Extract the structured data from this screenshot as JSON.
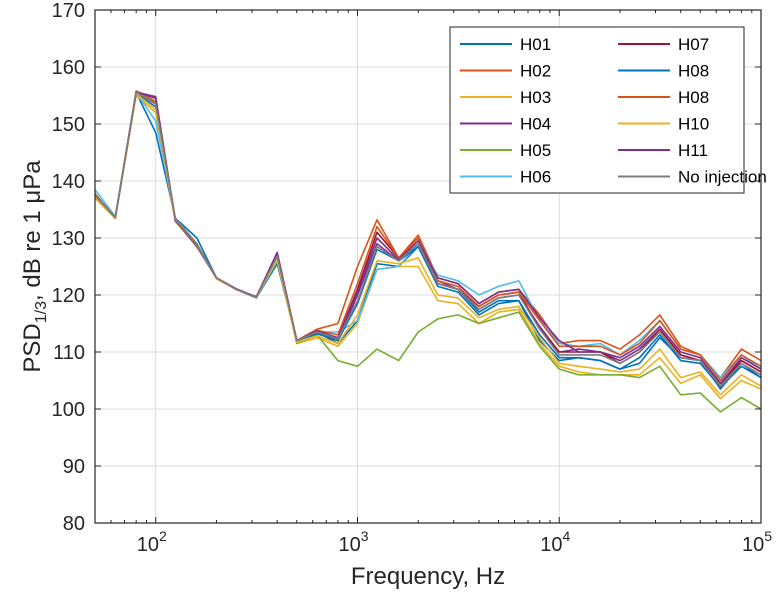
{
  "chart_data": {
    "type": "line",
    "xscale": "log",
    "xlim": [
      50,
      100000
    ],
    "ylim": [
      80,
      170
    ],
    "grid": true,
    "legend_position": "top-right",
    "xlabel": "Frequency, Hz",
    "ylabel": "PSD",
    "ylabel_subscript": "1/3",
    "ylabel_tail": ", dB re 1 μPa",
    "x_ticks": [
      {
        "value": 100,
        "base": "10",
        "exp": "2"
      },
      {
        "value": 1000,
        "base": "10",
        "exp": "3"
      },
      {
        "value": 10000,
        "base": "10",
        "exp": "4"
      },
      {
        "value": 100000,
        "base": "10",
        "exp": "5"
      }
    ],
    "y_ticks": [
      "80",
      "90",
      "100",
      "110",
      "120",
      "130",
      "140",
      "150",
      "160",
      "170"
    ],
    "x": [
      50,
      63,
      80,
      100,
      125,
      160,
      200,
      250,
      315,
      400,
      500,
      630,
      800,
      1000,
      1250,
      1600,
      2000,
      2500,
      3150,
      4000,
      5000,
      6300,
      8000,
      10000,
      12500,
      16000,
      20000,
      25000,
      31500,
      40000,
      50000,
      63000,
      80000,
      100000
    ],
    "series": [
      {
        "name": "H01",
        "color": "#0072BD",
        "values": [
          137.5,
          133.6,
          155.5,
          148.5,
          133.5,
          130.0,
          123.0,
          121.0,
          119.5,
          125.5,
          112.0,
          113.5,
          111.5,
          115.5,
          125.5,
          125.0,
          128.5,
          122.0,
          121.0,
          117.0,
          119.0,
          119.0,
          112.0,
          108.5,
          109.0,
          108.5,
          107.0,
          108.0,
          112.5,
          109.0,
          108.5,
          103.5,
          108.0,
          105.5
        ]
      },
      {
        "name": "H02",
        "color": "#D95319",
        "values": [
          137.8,
          133.5,
          155.8,
          154.0,
          133.0,
          128.5,
          123.0,
          121.0,
          119.7,
          127.0,
          112.0,
          114.0,
          115.0,
          125.0,
          133.2,
          126.5,
          130.5,
          123.0,
          122.0,
          118.5,
          120.5,
          121.0,
          116.5,
          111.5,
          112.0,
          112.0,
          110.5,
          113.0,
          116.5,
          111.0,
          109.5,
          105.5,
          110.5,
          108.5
        ]
      },
      {
        "name": "H03",
        "color": "#EDB120",
        "values": [
          137.0,
          133.4,
          155.0,
          152.0,
          132.8,
          128.8,
          122.8,
          121.0,
          119.6,
          126.0,
          111.5,
          112.5,
          111.0,
          115.0,
          124.5,
          125.0,
          125.0,
          119.0,
          118.5,
          115.0,
          117.0,
          117.5,
          111.5,
          107.5,
          106.5,
          106.0,
          106.0,
          106.0,
          109.0,
          104.5,
          106.0,
          101.8,
          105.0,
          103.5
        ]
      },
      {
        "name": "H04",
        "color": "#7E2F8E",
        "values": [
          137.6,
          133.6,
          155.7,
          154.5,
          133.2,
          128.6,
          123.0,
          121.1,
          119.7,
          127.3,
          112.0,
          113.5,
          112.0,
          120.0,
          129.0,
          126.0,
          129.0,
          122.5,
          121.0,
          117.5,
          119.5,
          120.0,
          114.5,
          110.0,
          110.5,
          110.0,
          108.5,
          110.5,
          114.0,
          109.5,
          108.5,
          104.0,
          108.5,
          106.5
        ]
      },
      {
        "name": "H05",
        "color": "#77AC30",
        "values": [
          137.3,
          133.5,
          155.5,
          154.0,
          133.0,
          128.5,
          123.0,
          121.0,
          119.5,
          127.0,
          111.5,
          113.0,
          108.5,
          107.5,
          110.5,
          108.5,
          113.5,
          115.8,
          116.5,
          115.0,
          116.0,
          117.0,
          111.0,
          107.0,
          106.0,
          106.0,
          106.0,
          105.5,
          107.5,
          102.5,
          102.8,
          99.5,
          102.0,
          100.0
        ]
      },
      {
        "name": "H06",
        "color": "#4DBEEE",
        "values": [
          138.5,
          133.8,
          155.5,
          150.5,
          133.5,
          129.0,
          123.0,
          121.0,
          119.5,
          126.0,
          112.0,
          113.5,
          113.5,
          115.5,
          124.5,
          125.0,
          129.0,
          123.5,
          122.5,
          120.0,
          121.5,
          122.5,
          115.5,
          111.5,
          111.0,
          111.5,
          109.5,
          112.0,
          115.5,
          110.5,
          109.5,
          105.5,
          109.5,
          107.0
        ]
      },
      {
        "name": "H07",
        "color": "#A2142F",
        "values": [
          137.6,
          133.6,
          155.6,
          153.5,
          133.3,
          128.7,
          123.0,
          121.0,
          119.6,
          126.8,
          112.0,
          113.6,
          112.5,
          121.0,
          131.0,
          126.5,
          130.0,
          122.0,
          121.0,
          118.0,
          120.0,
          120.5,
          114.0,
          110.0,
          110.0,
          110.0,
          108.0,
          110.0,
          114.0,
          109.5,
          108.5,
          104.5,
          108.5,
          106.5
        ]
      },
      {
        "name": "H08",
        "color": "#0072BD",
        "values": [
          137.4,
          133.5,
          155.4,
          153.0,
          133.2,
          128.8,
          123.0,
          121.0,
          119.6,
          126.5,
          112.0,
          113.2,
          112.0,
          118.5,
          128.0,
          126.0,
          128.5,
          121.5,
          120.5,
          116.5,
          118.5,
          119.0,
          113.0,
          109.0,
          109.0,
          108.5,
          107.0,
          109.0,
          113.0,
          108.5,
          108.0,
          103.8,
          107.5,
          105.5
        ]
      },
      {
        "name": "H08",
        "color": "#D95319",
        "values": [
          137.7,
          133.6,
          155.7,
          153.8,
          133.4,
          128.9,
          123.0,
          121.0,
          119.7,
          127.0,
          112.0,
          113.8,
          113.0,
          122.0,
          132.0,
          126.5,
          130.0,
          122.5,
          121.5,
          118.0,
          120.0,
          120.5,
          115.5,
          111.0,
          111.0,
          111.0,
          109.5,
          111.5,
          115.5,
          110.5,
          109.5,
          105.0,
          109.5,
          107.5
        ]
      },
      {
        "name": "H10",
        "color": "#EDB120",
        "values": [
          137.2,
          133.5,
          155.3,
          152.5,
          133.0,
          128.6,
          122.9,
          121.0,
          119.6,
          126.2,
          111.7,
          112.8,
          111.5,
          116.5,
          126.0,
          125.5,
          126.5,
          120.0,
          119.5,
          116.0,
          117.5,
          118.0,
          112.5,
          108.0,
          107.5,
          107.0,
          106.5,
          107.0,
          110.5,
          105.5,
          106.5,
          102.5,
          106.0,
          104.0
        ]
      },
      {
        "name": "H11",
        "color": "#7E2F8E",
        "values": [
          137.5,
          133.6,
          155.6,
          154.8,
          133.1,
          128.5,
          123.0,
          121.1,
          119.6,
          127.5,
          112.0,
          113.7,
          112.5,
          120.5,
          130.0,
          126.2,
          129.5,
          123.0,
          122.0,
          118.5,
          120.5,
          121.0,
          116.0,
          112.0,
          110.0,
          110.0,
          109.0,
          111.0,
          114.5,
          110.0,
          109.0,
          104.5,
          109.0,
          107.0
        ]
      },
      {
        "name": "No injection",
        "color": "#7F7F7F",
        "values": [
          137.5,
          133.6,
          155.6,
          153.5,
          133.3,
          128.7,
          123.0,
          121.0,
          119.6,
          126.8,
          112.0,
          113.5,
          112.3,
          119.0,
          128.5,
          126.0,
          129.0,
          122.0,
          121.0,
          117.5,
          119.5,
          120.0,
          114.0,
          109.5,
          109.5,
          109.5,
          108.0,
          110.0,
          113.5,
          109.0,
          108.5,
          104.0,
          108.0,
          106.0
        ]
      }
    ]
  }
}
